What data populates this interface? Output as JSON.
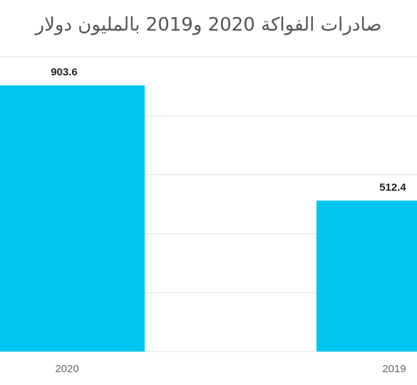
{
  "chart_data": {
    "type": "bar",
    "title": "صادرات الفواكة 2020 و2019 بالمليون دولار",
    "categories": [
      "2020",
      "2019"
    ],
    "values": [
      903.6,
      512.4
    ],
    "data_labels": [
      "903.6",
      "512.4"
    ],
    "ylim": [
      0,
      1000
    ],
    "grid": true,
    "legend": "none",
    "bar_color": "#00C5F0"
  }
}
